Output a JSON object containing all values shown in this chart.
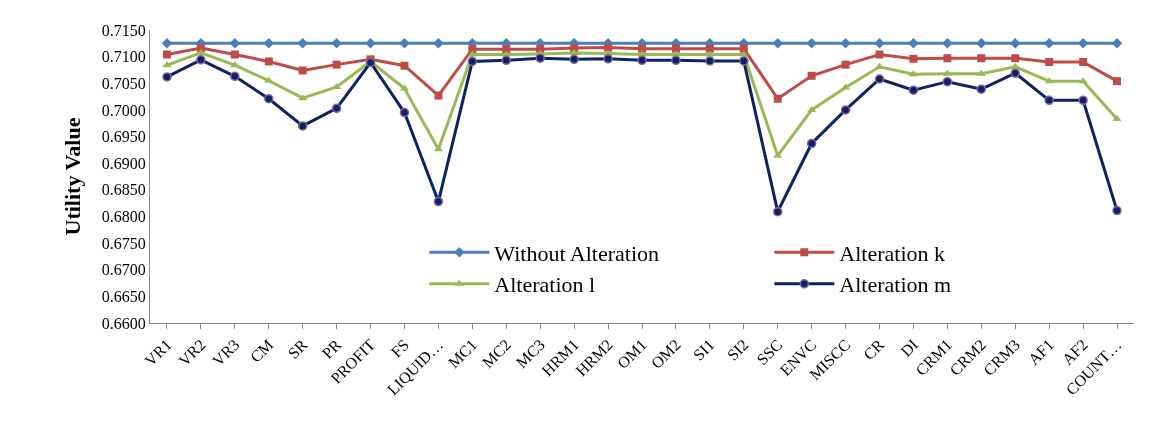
{
  "chart_data": {
    "type": "line",
    "ylabel": "Utility Value",
    "categories": [
      "VR1",
      "VR2",
      "VR3",
      "CM",
      "SR",
      "PR",
      "PROFIT",
      "FS",
      "LIQUID…",
      "MC1",
      "MC2",
      "MC3",
      "HRM1",
      "HRM2",
      "OM1",
      "OM2",
      "SI1",
      "SI2",
      "SSC",
      "ENVC",
      "MISCC",
      "CR",
      "DI",
      "CRM1",
      "CRM2",
      "CRM3",
      "AF1",
      "AF2",
      "COUNT…"
    ],
    "series": [
      {
        "name": "Without Alteration",
        "color": "#4a7ebb",
        "marker": "diamond",
        "values": [
          0.7125,
          0.7125,
          0.7125,
          0.7125,
          0.7125,
          0.7125,
          0.7125,
          0.7125,
          0.7125,
          0.7125,
          0.7125,
          0.7125,
          0.7125,
          0.7125,
          0.7125,
          0.7125,
          0.7125,
          0.7125,
          0.7125,
          0.7125,
          0.7125,
          0.7125,
          0.7125,
          0.7125,
          0.7125,
          0.7125,
          0.7125,
          0.7125,
          0.7125
        ]
      },
      {
        "name": "Alteration k",
        "color": "#be4b48",
        "marker": "square",
        "values": [
          0.7104,
          0.7116,
          0.7104,
          0.7091,
          0.7074,
          0.7085,
          0.7095,
          0.7083,
          0.7027,
          0.7114,
          0.7114,
          0.7114,
          0.7116,
          0.7117,
          0.7115,
          0.7115,
          0.7115,
          0.7115,
          0.7021,
          0.7064,
          0.7085,
          0.7104,
          0.7096,
          0.7097,
          0.7097,
          0.7097,
          0.709,
          0.709,
          0.7054
        ]
      },
      {
        "name": "Alteration l",
        "color": "#98b954",
        "marker": "triangle",
        "values": [
          0.7084,
          0.7107,
          0.7084,
          0.7055,
          0.7022,
          0.7043,
          0.7091,
          0.704,
          0.6926,
          0.7104,
          0.7104,
          0.7105,
          0.7107,
          0.7106,
          0.7104,
          0.7104,
          0.7104,
          0.7104,
          0.6914,
          0.7,
          0.7042,
          0.7081,
          0.7067,
          0.7068,
          0.7068,
          0.7081,
          0.7054,
          0.7054,
          0.6983
        ]
      },
      {
        "name": "Alteration m",
        "color": "#0d2163",
        "marker": "circle",
        "values": [
          0.7062,
          0.7094,
          0.7063,
          0.7021,
          0.697,
          0.7003,
          0.7089,
          0.6995,
          0.6828,
          0.7091,
          0.7093,
          0.7097,
          0.7095,
          0.7096,
          0.7093,
          0.7093,
          0.7092,
          0.7092,
          0.6809,
          0.6937,
          0.7,
          0.7058,
          0.7037,
          0.7053,
          0.7039,
          0.7069,
          0.7018,
          0.7018,
          0.6811
        ]
      }
    ],
    "ylim": [
      0.66,
      0.715
    ],
    "yticks": [
      {
        "value": 0.66,
        "label": "0.6600"
      },
      {
        "value": 0.665,
        "label": "0.6650"
      },
      {
        "value": 0.67,
        "label": "0.6700"
      },
      {
        "value": 0.675,
        "label": "0.6750"
      },
      {
        "value": 0.68,
        "label": "0.6800"
      },
      {
        "value": 0.685,
        "label": "0.6850"
      },
      {
        "value": 0.69,
        "label": "0.6900"
      },
      {
        "value": 0.695,
        "label": "0.6950"
      },
      {
        "value": 0.7,
        "label": "0.7000"
      },
      {
        "value": 0.705,
        "label": "0.7050"
      },
      {
        "value": 0.71,
        "label": "0.7100"
      },
      {
        "value": 0.715,
        "label": "0.7150"
      }
    ],
    "legend": "bottom right"
  }
}
